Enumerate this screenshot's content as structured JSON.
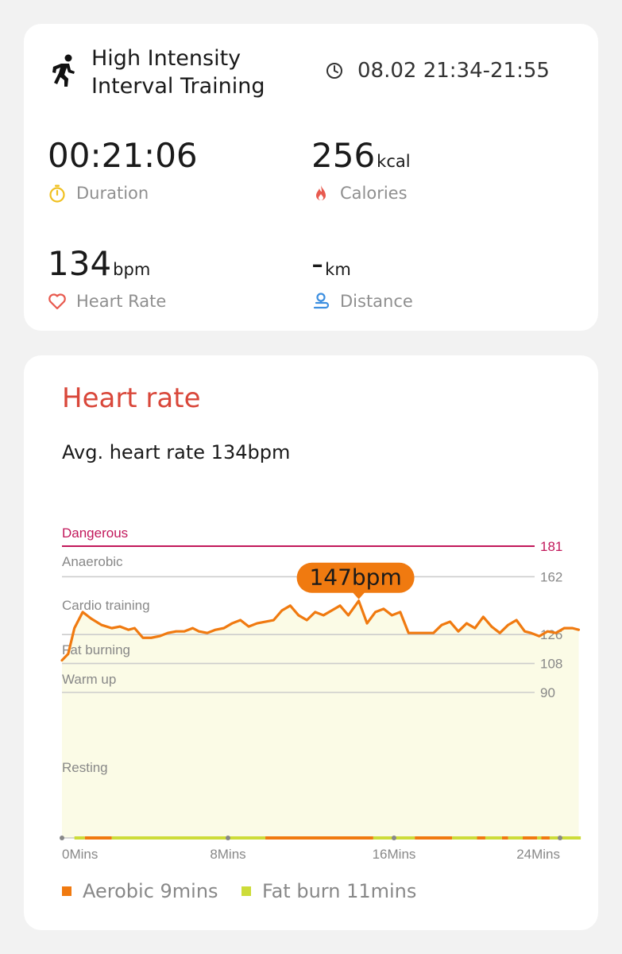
{
  "workout": {
    "type": "High Intensity Interval Training",
    "time_range": "08.02 21:34-21:55",
    "workout_icon": "running-person-icon",
    "clock_icon": "clock-icon"
  },
  "stats": {
    "duration": {
      "value": "00:21:06",
      "unit": "",
      "label": "Duration",
      "icon": "stopwatch-icon",
      "color": "#f0c020"
    },
    "calories": {
      "value": "256",
      "unit": "kcal",
      "label": "Calories",
      "icon": "flame-icon",
      "color": "#e85a4f"
    },
    "heart_rate": {
      "value": "134",
      "unit": "bpm",
      "label": "Heart Rate",
      "icon": "heart-icon",
      "color": "#e85a4f"
    },
    "distance": {
      "value": "-",
      "unit": "km",
      "label": "Distance",
      "icon": "location-route-icon",
      "color": "#3d8fe0"
    }
  },
  "heart_rate_section": {
    "title": "Heart rate",
    "avg_text": "Avg. heart rate 134bpm"
  },
  "chart_data": {
    "type": "line",
    "x_unit": "minutes",
    "xlim": [
      0,
      24
    ],
    "x_ticks": [
      {
        "value": 0,
        "label": "0Mins"
      },
      {
        "value": 8,
        "label": "8Mins"
      },
      {
        "value": 16,
        "label": "16Mins"
      },
      {
        "value": 24,
        "label": "24Mins"
      }
    ],
    "zones": [
      {
        "name": "Dangerous",
        "threshold": 181,
        "color": "#c2185b"
      },
      {
        "name": "Anaerobic",
        "threshold": 162,
        "color": "#cccccc"
      },
      {
        "name": "Cardio training",
        "threshold": 126,
        "color": "#cccccc"
      },
      {
        "name": "Fat burning",
        "threshold": 108,
        "color": "#cccccc"
      },
      {
        "name": "Warm up",
        "threshold": 90,
        "color": "#cccccc"
      },
      {
        "name": "Resting",
        "threshold": null,
        "color": "#cccccc"
      }
    ],
    "peak": {
      "x": 14.3,
      "value": 147,
      "label": "147bpm"
    },
    "line_color": "#f07a10",
    "fill_color": "#fbfbe6",
    "series": [
      {
        "x": [
          0,
          0.3,
          0.6,
          1.0,
          1.4,
          1.9,
          2.4,
          2.8,
          3.2,
          3.5,
          3.9,
          4.3,
          4.7,
          5.1,
          5.5,
          5.9,
          6.3,
          6.6,
          7.0,
          7.4,
          7.8,
          8.2,
          8.6,
          9.0,
          9.4,
          9.8,
          10.2,
          10.6,
          11.0,
          11.4,
          11.8,
          12.2,
          12.6,
          13.0,
          13.4,
          13.8,
          14.3,
          14.7,
          15.1,
          15.5,
          15.9,
          16.3,
          16.7,
          17.1,
          17.5,
          17.9,
          18.3,
          18.7,
          19.1,
          19.5,
          19.9,
          20.3,
          20.7,
          21.1,
          21.5,
          21.9,
          22.3,
          22.6,
          23.0,
          23.4,
          23.8,
          24.2,
          24.6,
          24.9
        ],
        "values": [
          110,
          114,
          130,
          140,
          136,
          132,
          130,
          131,
          129,
          130,
          124,
          124,
          125,
          127,
          128,
          128,
          130,
          128,
          127,
          129,
          130,
          133,
          135,
          131,
          133,
          134,
          135,
          141,
          144,
          138,
          135,
          140,
          138,
          141,
          144,
          138,
          147,
          133,
          140,
          142,
          138,
          140,
          127,
          127,
          127,
          127,
          132,
          134,
          128,
          133,
          130,
          137,
          131,
          127,
          132,
          135,
          128,
          127,
          125,
          128,
          127,
          130,
          130,
          129
        ]
      }
    ],
    "zone_segments": [
      {
        "zone": "Aerobic",
        "color": "#f07a10",
        "ranges": [
          [
            1.1,
            2.4
          ],
          [
            9.8,
            15.0
          ],
          [
            17.0,
            18.8
          ],
          [
            20.0,
            20.4
          ],
          [
            21.2,
            21.5
          ],
          [
            22.2,
            22.9
          ],
          [
            23.1,
            23.5
          ]
        ]
      },
      {
        "zone": "Fat burn",
        "color": "#cddc39",
        "ranges": [
          [
            0.6,
            1.1
          ],
          [
            2.4,
            9.8
          ],
          [
            15.0,
            17.0
          ],
          [
            18.8,
            20.0
          ],
          [
            20.4,
            21.2
          ],
          [
            21.5,
            22.2
          ],
          [
            22.9,
            23.1
          ],
          [
            23.5,
            25.0
          ]
        ]
      }
    ],
    "legend": [
      {
        "label": "Aerobic 9mins",
        "color": "#f07a10"
      },
      {
        "label": "Fat burn 11mins",
        "color": "#cddc39"
      }
    ]
  }
}
